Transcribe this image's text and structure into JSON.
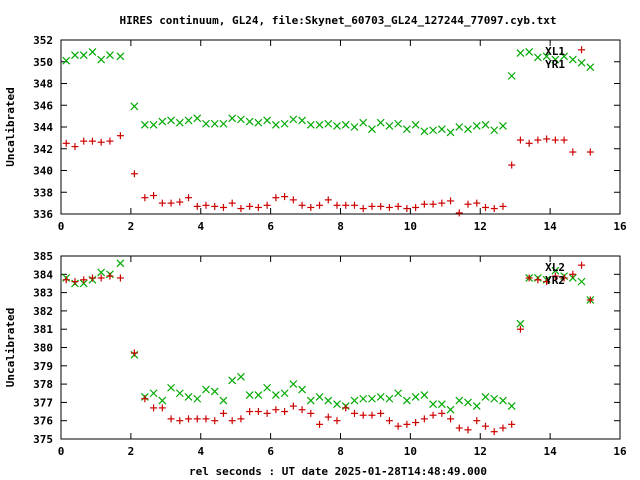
{
  "title": "HIRES continuum, GL24, file:Skynet_60703_GL24_127244_77097.cyb.txt",
  "xlabel": "rel seconds : UT date 2025-01-28T14:48:49.000",
  "chart_data": [
    {
      "type": "scatter",
      "ylabel": "Uncalibrated",
      "xlim": [
        0,
        16
      ],
      "ylim": [
        336,
        352
      ],
      "x_ticks": [
        "0",
        "2",
        "4",
        "6",
        "8",
        "10",
        "12",
        "14",
        "16"
      ],
      "y_ticks": [
        "336",
        "338",
        "340",
        "342",
        "344",
        "346",
        "348",
        "350",
        "352"
      ],
      "legend_position": "top-right",
      "series": [
        {
          "name": "XL1",
          "color": "#00aa00",
          "marker": "x",
          "x": [
            0.15,
            0.4,
            0.65,
            0.9,
            1.15,
            1.4,
            1.7,
            2.1,
            2.4,
            2.65,
            2.9,
            3.15,
            3.4,
            3.65,
            3.9,
            4.15,
            4.4,
            4.65,
            4.9,
            5.15,
            5.4,
            5.65,
            5.9,
            6.15,
            6.4,
            6.65,
            6.9,
            7.15,
            7.4,
            7.65,
            7.9,
            8.15,
            8.4,
            8.65,
            8.9,
            9.15,
            9.4,
            9.65,
            9.9,
            10.15,
            10.4,
            10.65,
            10.9,
            11.15,
            11.4,
            11.65,
            11.9,
            12.15,
            12.4,
            12.65,
            12.9,
            13.15,
            13.4,
            13.65,
            13.9,
            14.15,
            14.4,
            14.65,
            14.9,
            15.15
          ],
          "y": [
            350.1,
            350.6,
            350.6,
            350.9,
            350.2,
            350.6,
            350.5,
            345.9,
            344.2,
            344.2,
            344.5,
            344.6,
            344.4,
            344.6,
            344.8,
            344.3,
            344.3,
            344.3,
            344.8,
            344.7,
            344.5,
            344.4,
            344.6,
            344.2,
            344.3,
            344.7,
            344.6,
            344.2,
            344.2,
            344.3,
            344.1,
            344.2,
            344.0,
            344.4,
            343.8,
            344.4,
            344.1,
            344.3,
            343.8,
            344.2,
            343.6,
            343.7,
            343.8,
            343.5,
            344.0,
            343.8,
            344.1,
            344.2,
            343.7,
            344.1,
            348.7,
            350.8,
            350.9,
            350.4,
            350.5,
            350.2,
            350.5,
            350.2,
            349.9,
            349.5
          ]
        },
        {
          "name": "YR1",
          "color": "#cc0000",
          "marker": "+",
          "x": [
            0.15,
            0.4,
            0.65,
            0.9,
            1.15,
            1.4,
            1.7,
            2.1,
            2.4,
            2.65,
            2.9,
            3.15,
            3.4,
            3.65,
            3.9,
            4.15,
            4.4,
            4.65,
            4.9,
            5.15,
            5.4,
            5.65,
            5.9,
            6.15,
            6.4,
            6.65,
            6.9,
            7.15,
            7.4,
            7.65,
            7.9,
            8.15,
            8.4,
            8.65,
            8.9,
            9.15,
            9.4,
            9.65,
            9.9,
            10.15,
            10.4,
            10.65,
            10.9,
            11.15,
            11.4,
            11.65,
            11.9,
            12.15,
            12.4,
            12.65,
            12.9,
            13.15,
            13.4,
            13.65,
            13.9,
            14.15,
            14.4,
            14.65,
            14.9,
            15.15
          ],
          "y": [
            342.5,
            342.2,
            342.7,
            342.7,
            342.6,
            342.7,
            343.2,
            339.7,
            337.5,
            337.7,
            337.0,
            337.0,
            337.1,
            337.5,
            336.7,
            336.8,
            336.7,
            336.6,
            337.0,
            336.5,
            336.7,
            336.6,
            336.8,
            337.5,
            337.6,
            337.3,
            336.8,
            336.6,
            336.8,
            337.3,
            336.8,
            336.8,
            336.8,
            336.5,
            336.7,
            336.7,
            336.6,
            336.7,
            336.5,
            336.6,
            336.9,
            336.9,
            337.0,
            337.2,
            336.1,
            336.9,
            337.0,
            336.6,
            336.5,
            336.7,
            340.5,
            342.8,
            342.5,
            342.8,
            342.9,
            342.8,
            342.8,
            341.7,
            351.1,
            341.7
          ]
        }
      ]
    },
    {
      "type": "scatter",
      "ylabel": "Uncalibrated",
      "xlim": [
        0,
        16
      ],
      "ylim": [
        375,
        385
      ],
      "x_ticks": [
        "0",
        "2",
        "4",
        "6",
        "8",
        "10",
        "12",
        "14",
        "16"
      ],
      "y_ticks": [
        "375",
        "376",
        "377",
        "378",
        "379",
        "380",
        "381",
        "382",
        "383",
        "384",
        "385"
      ],
      "legend_position": "top-right",
      "series": [
        {
          "name": "XL2",
          "color": "#00aa00",
          "marker": "x",
          "x": [
            0.15,
            0.4,
            0.65,
            0.9,
            1.15,
            1.4,
            1.7,
            2.1,
            2.4,
            2.65,
            2.9,
            3.15,
            3.4,
            3.65,
            3.9,
            4.15,
            4.4,
            4.65,
            4.9,
            5.15,
            5.4,
            5.65,
            5.9,
            6.15,
            6.4,
            6.65,
            6.9,
            7.15,
            7.4,
            7.65,
            7.9,
            8.15,
            8.4,
            8.65,
            8.9,
            9.15,
            9.4,
            9.65,
            9.9,
            10.15,
            10.4,
            10.65,
            10.9,
            11.15,
            11.4,
            11.65,
            11.9,
            12.15,
            12.4,
            12.65,
            12.9,
            13.15,
            13.4,
            13.65,
            13.9,
            14.15,
            14.4,
            14.65,
            14.9,
            15.15
          ],
          "y": [
            383.8,
            383.5,
            383.5,
            383.7,
            384.1,
            384.0,
            384.6,
            379.6,
            377.3,
            377.5,
            377.1,
            377.8,
            377.5,
            377.3,
            377.2,
            377.7,
            377.6,
            377.1,
            378.2,
            378.4,
            377.4,
            377.4,
            377.8,
            377.4,
            377.5,
            378.0,
            377.7,
            377.1,
            377.3,
            377.1,
            376.9,
            376.8,
            377.1,
            377.2,
            377.2,
            377.3,
            377.2,
            377.5,
            377.1,
            377.3,
            377.4,
            376.9,
            376.9,
            376.6,
            377.1,
            377.0,
            376.8,
            377.3,
            377.2,
            377.1,
            376.8,
            381.3,
            383.8,
            383.8,
            383.7,
            384.2,
            383.9,
            383.8,
            383.6,
            382.6
          ]
        },
        {
          "name": "YR2",
          "color": "#cc0000",
          "marker": "+",
          "x": [
            0.15,
            0.4,
            0.65,
            0.9,
            1.15,
            1.4,
            1.7,
            2.1,
            2.4,
            2.65,
            2.9,
            3.15,
            3.4,
            3.65,
            3.9,
            4.15,
            4.4,
            4.65,
            4.9,
            5.15,
            5.4,
            5.65,
            5.9,
            6.15,
            6.4,
            6.65,
            6.9,
            7.15,
            7.4,
            7.65,
            7.9,
            8.15,
            8.4,
            8.65,
            8.9,
            9.15,
            9.4,
            9.65,
            9.9,
            10.15,
            10.4,
            10.65,
            10.9,
            11.15,
            11.4,
            11.65,
            11.9,
            12.15,
            12.4,
            12.65,
            12.9,
            13.15,
            13.4,
            13.65,
            13.9,
            14.15,
            14.4,
            14.65,
            14.9,
            15.15
          ],
          "y": [
            383.7,
            383.6,
            383.7,
            383.8,
            383.8,
            383.9,
            383.8,
            379.7,
            377.2,
            376.7,
            376.7,
            376.1,
            376.0,
            376.1,
            376.1,
            376.1,
            376.0,
            376.4,
            376.0,
            376.1,
            376.5,
            376.5,
            376.4,
            376.6,
            376.5,
            376.8,
            376.6,
            376.4,
            375.8,
            376.2,
            376.0,
            376.7,
            376.4,
            376.3,
            376.3,
            376.4,
            376.0,
            375.7,
            375.8,
            375.9,
            376.1,
            376.3,
            376.4,
            376.1,
            375.6,
            375.5,
            376.0,
            375.7,
            375.4,
            375.6,
            375.8,
            381.0,
            383.8,
            383.7,
            383.6,
            383.9,
            383.8,
            384.0,
            384.5,
            382.6
          ]
        }
      ]
    }
  ]
}
